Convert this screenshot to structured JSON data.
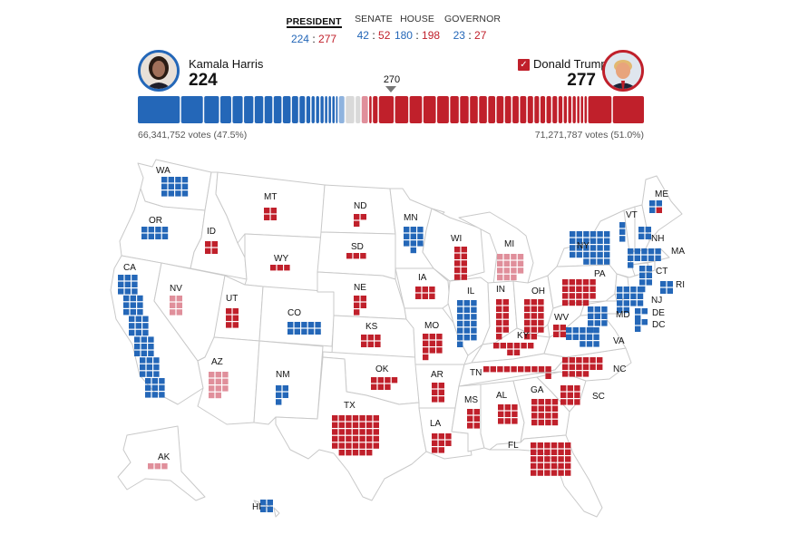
{
  "tabs": [
    {
      "label": "PRESIDENT",
      "dem": "224",
      "rep": "277",
      "active": true
    },
    {
      "label": "SENATE",
      "dem": "42",
      "rep": "52",
      "active": false
    },
    {
      "label": "HOUSE",
      "dem": "180",
      "rep": "198",
      "active": false
    },
    {
      "label": "GOVERNOR",
      "dem": "23",
      "rep": "27",
      "active": false
    }
  ],
  "candidates": {
    "dem": {
      "name": "Kamala Harris",
      "electoral_votes": "224",
      "votes": "66,341,752 votes (47.5%)"
    },
    "rep": {
      "name": "Donald Trump",
      "electoral_votes": "277",
      "votes": "71,271,787 votes (51.0%)",
      "winner_mark": "✓"
    }
  },
  "threshold": "270",
  "colors": {
    "dem": "#2467b8",
    "rep": "#c0202b",
    "dem_leaning": "#8fb3de",
    "rep_leaning": "#e08f9b",
    "undecided": "#d9d9d9",
    "state_border": "#c9c9c9"
  },
  "states": [
    {
      "abbr": "WA",
      "ev": 12,
      "party": "dem"
    },
    {
      "abbr": "OR",
      "ev": 8,
      "party": "dem"
    },
    {
      "abbr": "CA",
      "ev": 54,
      "party": "dem"
    },
    {
      "abbr": "NV",
      "ev": 6,
      "party": "rep_leaning"
    },
    {
      "abbr": "ID",
      "ev": 4,
      "party": "rep"
    },
    {
      "abbr": "MT",
      "ev": 4,
      "party": "rep"
    },
    {
      "abbr": "WY",
      "ev": 3,
      "party": "rep"
    },
    {
      "abbr": "UT",
      "ev": 6,
      "party": "rep"
    },
    {
      "abbr": "CO",
      "ev": 10,
      "party": "dem"
    },
    {
      "abbr": "AZ",
      "ev": 11,
      "party": "rep_leaning"
    },
    {
      "abbr": "NM",
      "ev": 5,
      "party": "dem"
    },
    {
      "abbr": "ND",
      "ev": 3,
      "party": "rep"
    },
    {
      "abbr": "SD",
      "ev": 3,
      "party": "rep"
    },
    {
      "abbr": "NE",
      "ev": 5,
      "party": "rep"
    },
    {
      "abbr": "KS",
      "ev": 6,
      "party": "rep"
    },
    {
      "abbr": "OK",
      "ev": 7,
      "party": "rep"
    },
    {
      "abbr": "TX",
      "ev": 40,
      "party": "rep"
    },
    {
      "abbr": "MN",
      "ev": 10,
      "party": "dem"
    },
    {
      "abbr": "IA",
      "ev": 6,
      "party": "rep"
    },
    {
      "abbr": "MO",
      "ev": 10,
      "party": "rep"
    },
    {
      "abbr": "AR",
      "ev": 6,
      "party": "rep"
    },
    {
      "abbr": "LA",
      "ev": 8,
      "party": "rep"
    },
    {
      "abbr": "WI",
      "ev": 10,
      "party": "rep"
    },
    {
      "abbr": "IL",
      "ev": 19,
      "party": "dem"
    },
    {
      "abbr": "MI",
      "ev": 15,
      "party": "rep_leaning"
    },
    {
      "abbr": "IN",
      "ev": 11,
      "party": "rep"
    },
    {
      "abbr": "OH",
      "ev": 17,
      "party": "rep"
    },
    {
      "abbr": "KY",
      "ev": 8,
      "party": "rep"
    },
    {
      "abbr": "TN",
      "ev": 11,
      "party": "rep"
    },
    {
      "abbr": "MS",
      "ev": 6,
      "party": "rep"
    },
    {
      "abbr": "AL",
      "ev": 9,
      "party": "rep"
    },
    {
      "abbr": "GA",
      "ev": 16,
      "party": "rep"
    },
    {
      "abbr": "FL",
      "ev": 30,
      "party": "rep"
    },
    {
      "abbr": "SC",
      "ev": 9,
      "party": "rep"
    },
    {
      "abbr": "NC",
      "ev": 16,
      "party": "rep"
    },
    {
      "abbr": "VA",
      "ev": 13,
      "party": "dem"
    },
    {
      "abbr": "WV",
      "ev": 4,
      "party": "rep"
    },
    {
      "abbr": "PA",
      "ev": 19,
      "party": "rep"
    },
    {
      "abbr": "NY",
      "ev": 28,
      "party": "dem"
    },
    {
      "abbr": "VT",
      "ev": 3,
      "party": "dem"
    },
    {
      "abbr": "NH",
      "ev": 4,
      "party": "dem"
    },
    {
      "abbr": "ME",
      "ev": 4,
      "party": "dem",
      "split": [
        3,
        1
      ]
    },
    {
      "abbr": "MA",
      "ev": 11,
      "party": "dem"
    },
    {
      "abbr": "CT",
      "ev": 7,
      "party": "dem"
    },
    {
      "abbr": "RI",
      "ev": 4,
      "party": "dem"
    },
    {
      "abbr": "NJ",
      "ev": 14,
      "party": "dem"
    },
    {
      "abbr": "DE",
      "ev": 3,
      "party": "dem"
    },
    {
      "abbr": "MD",
      "ev": 10,
      "party": "dem"
    },
    {
      "abbr": "DC",
      "ev": 3,
      "party": "dem"
    },
    {
      "abbr": "AK",
      "ev": 3,
      "party": "rep_leaning"
    },
    {
      "abbr": "HI",
      "ev": 4,
      "party": "dem"
    }
  ],
  "bar_segments": [
    {
      "party": "dem",
      "ev": 54
    },
    {
      "party": "dem",
      "ev": 28
    },
    {
      "party": "dem",
      "ev": 19
    },
    {
      "party": "dem",
      "ev": 14
    },
    {
      "party": "dem",
      "ev": 13
    },
    {
      "party": "dem",
      "ev": 12
    },
    {
      "party": "dem",
      "ev": 11
    },
    {
      "party": "dem",
      "ev": 10
    },
    {
      "party": "dem",
      "ev": 10
    },
    {
      "party": "dem",
      "ev": 10
    },
    {
      "party": "dem",
      "ev": 8
    },
    {
      "party": "dem",
      "ev": 7
    },
    {
      "party": "dem",
      "ev": 5
    },
    {
      "party": "dem",
      "ev": 4
    },
    {
      "party": "dem",
      "ev": 4
    },
    {
      "party": "dem",
      "ev": 4
    },
    {
      "party": "dem",
      "ev": 3
    },
    {
      "party": "dem",
      "ev": 3
    },
    {
      "party": "dem",
      "ev": 3
    },
    {
      "party": "dem",
      "ev": 2
    },
    {
      "party": "dem_leaning",
      "ev": 7
    },
    {
      "party": "undecided",
      "ev": 11
    },
    {
      "party": "undecided",
      "ev": 6
    },
    {
      "party": "rep_leaning",
      "ev": 8
    },
    {
      "party": "rep",
      "ev": 3
    },
    {
      "party": "rep",
      "ev": 6
    },
    {
      "party": "rep",
      "ev": 19
    },
    {
      "party": "rep",
      "ev": 17
    },
    {
      "party": "rep",
      "ev": 16
    },
    {
      "party": "rep",
      "ev": 16
    },
    {
      "party": "rep",
      "ev": 15
    },
    {
      "party": "rep",
      "ev": 11
    },
    {
      "party": "rep",
      "ev": 11
    },
    {
      "party": "rep",
      "ev": 10
    },
    {
      "party": "rep",
      "ev": 10
    },
    {
      "party": "rep",
      "ev": 9
    },
    {
      "party": "rep",
      "ev": 9
    },
    {
      "party": "rep",
      "ev": 8
    },
    {
      "party": "rep",
      "ev": 8
    },
    {
      "party": "rep",
      "ev": 8
    },
    {
      "party": "rep",
      "ev": 7
    },
    {
      "party": "rep",
      "ev": 6
    },
    {
      "party": "rep",
      "ev": 6
    },
    {
      "party": "rep",
      "ev": 6
    },
    {
      "party": "rep",
      "ev": 6
    },
    {
      "party": "rep",
      "ev": 5
    },
    {
      "party": "rep",
      "ev": 4
    },
    {
      "party": "rep",
      "ev": 4
    },
    {
      "party": "rep",
      "ev": 4
    },
    {
      "party": "rep",
      "ev": 3
    },
    {
      "party": "rep",
      "ev": 3
    },
    {
      "party": "rep",
      "ev": 3
    },
    {
      "party": "rep",
      "ev": 30
    },
    {
      "party": "rep",
      "ev": 40
    }
  ]
}
